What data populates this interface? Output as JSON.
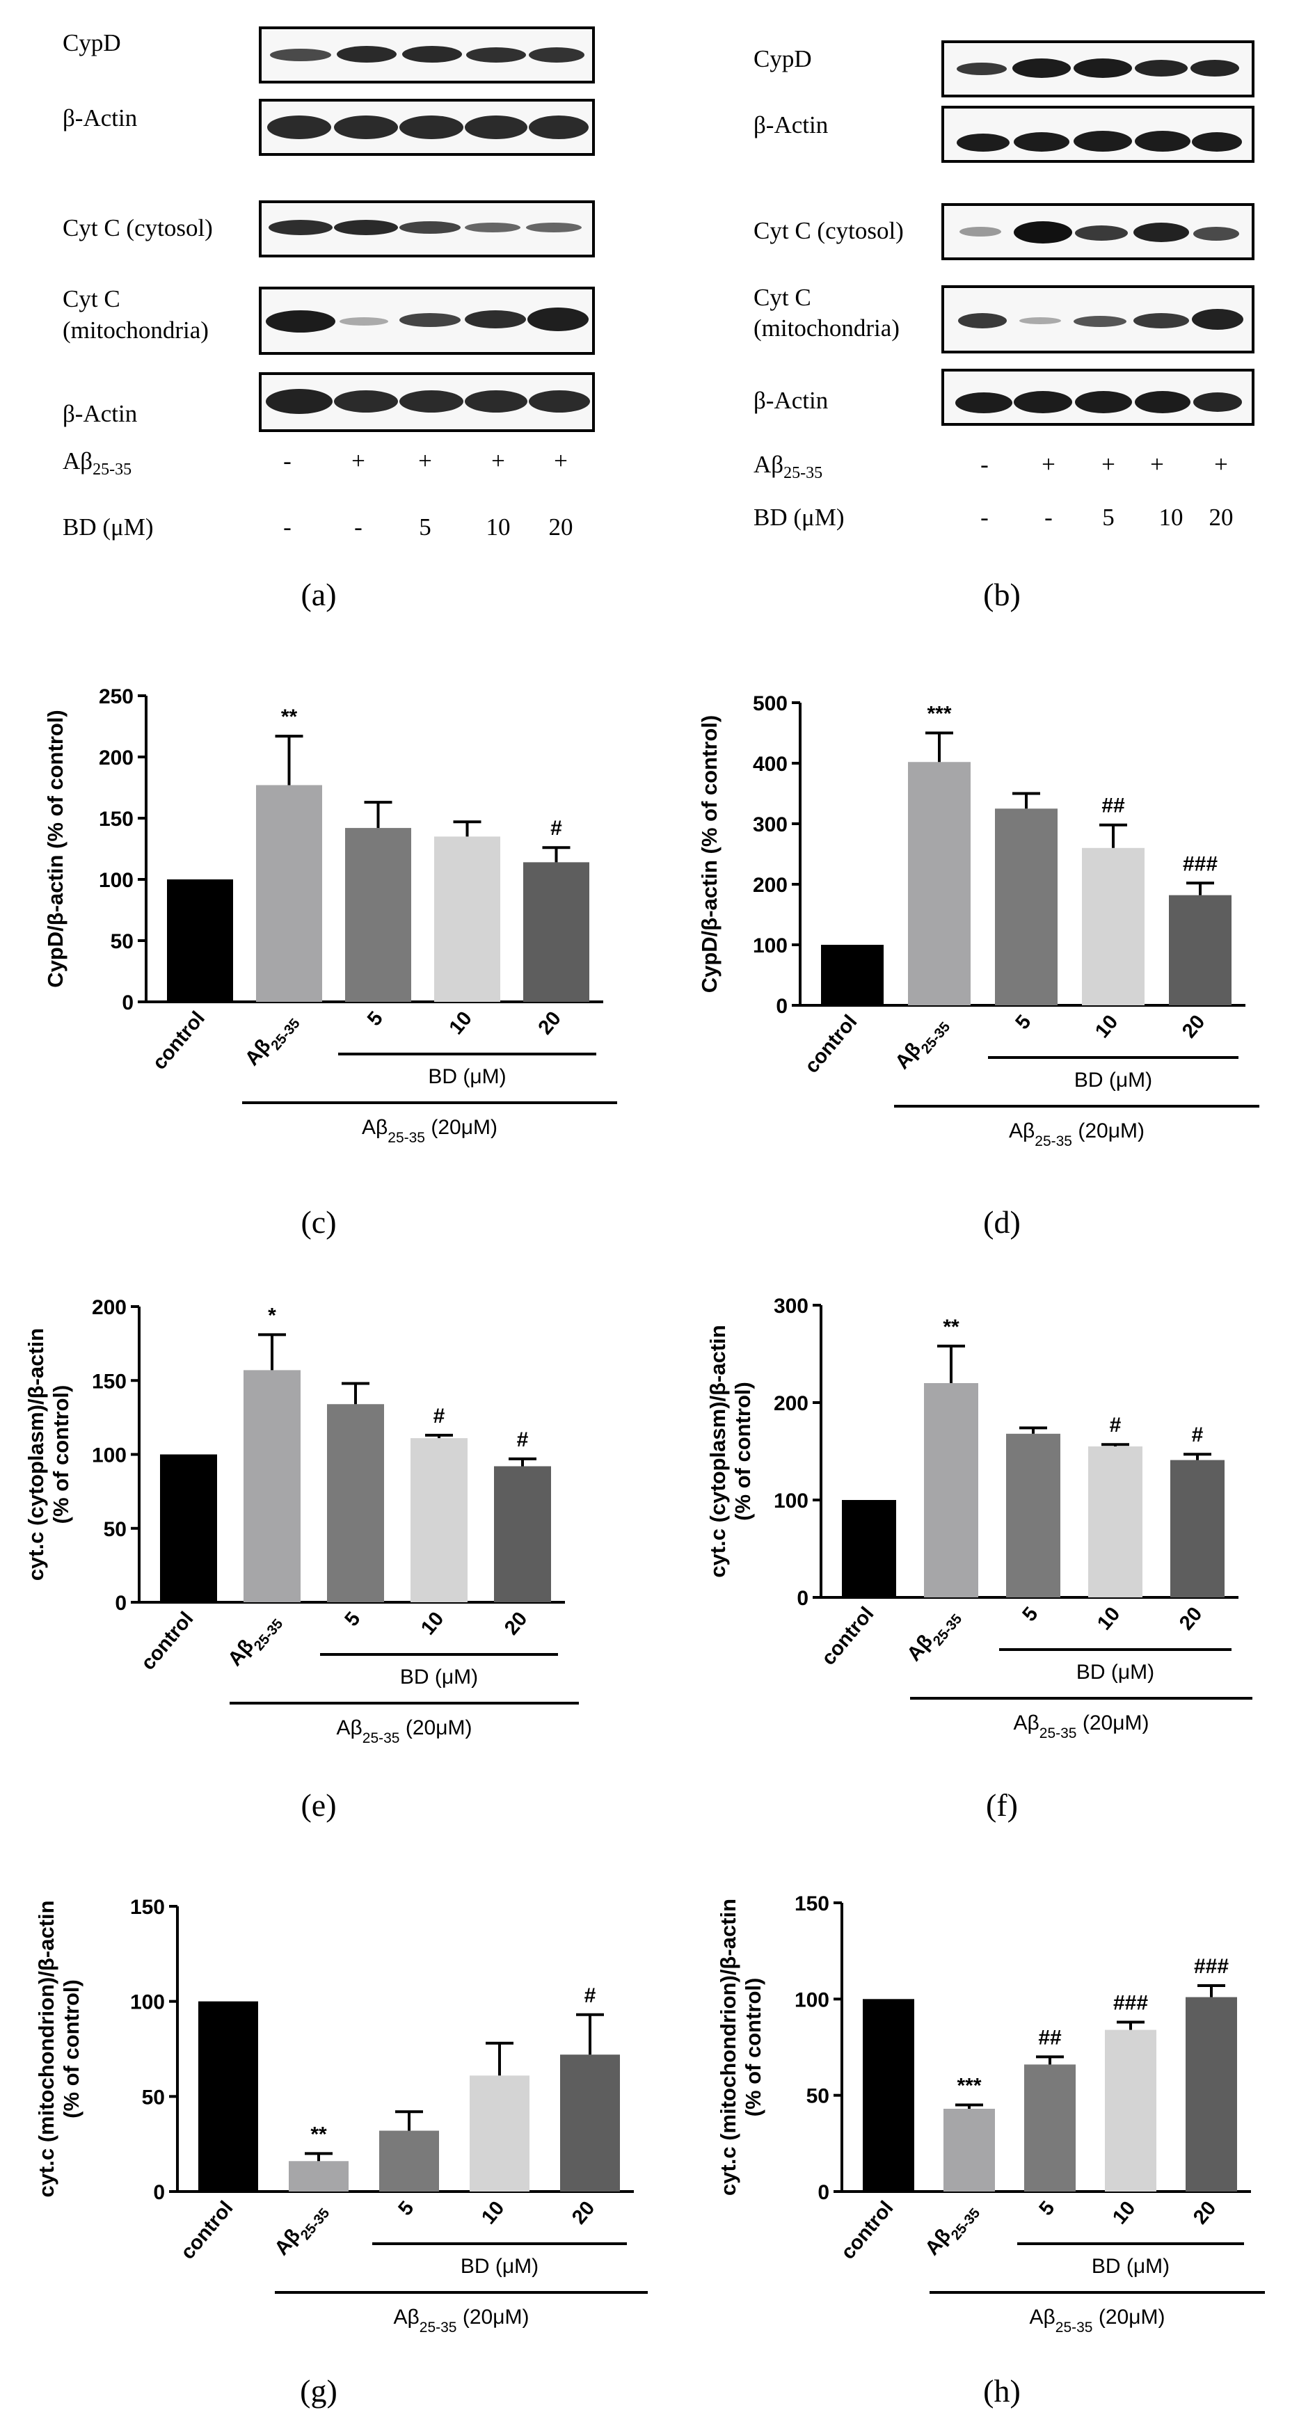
{
  "panel_labels": [
    "(a)",
    "(b)",
    "(c)",
    "(d)",
    "(e)",
    "(f)",
    "(g)",
    "(h)"
  ],
  "blots": {
    "a": {
      "rows": [
        "CypD",
        "β-Actin",
        "Cyt C (cytosol)",
        "Cyt C",
        "(mitochondria)",
        "β-Actin"
      ],
      "ab_label": "Aβ",
      "ab_sub": "25-35",
      "bd_label": "BD (μM)",
      "ab_values": [
        "-",
        "+",
        "+",
        "+",
        "+"
      ],
      "bd_values": [
        "-",
        "-",
        "5",
        "10",
        "20"
      ]
    },
    "b": {
      "rows": [
        "CypD",
        "β-Actin",
        "Cyt C (cytosol)",
        "Cyt C",
        "(mitochondria)",
        "β-Actin"
      ],
      "ab_label": "Aβ",
      "ab_sub": "25-35",
      "bd_label": "BD (μM)",
      "ab_values": [
        "-",
        "+",
        "+",
        "+",
        "+"
      ],
      "bd_values": [
        "-",
        "-",
        "5",
        "10",
        "20"
      ]
    }
  },
  "chart_data": [
    {
      "id": "c",
      "type": "bar",
      "ylabel": "CypD/β-actin (% of control)",
      "categories": [
        "control",
        "Aβ25-35",
        "5",
        "10",
        "20"
      ],
      "values": [
        100,
        177,
        142,
        135,
        114
      ],
      "errors": [
        0,
        40,
        21,
        12,
        12
      ],
      "significance": [
        "",
        "**",
        "",
        "",
        "#"
      ],
      "ylim": [
        0,
        250
      ],
      "yticks": [
        0,
        50,
        100,
        150,
        200,
        250
      ],
      "colors": [
        "#000000",
        "#a6a6a8",
        "#7a7a7a",
        "#d4d4d4",
        "#5e5e5e"
      ],
      "bd_label": "BD (μM)",
      "ab_label": "Aβ25-35 (20μM)"
    },
    {
      "id": "d",
      "type": "bar",
      "ylabel": "CypD/β-actin (% of control)",
      "categories": [
        "control",
        "Aβ25-35",
        "5",
        "10",
        "20"
      ],
      "values": [
        100,
        402,
        325,
        260,
        182
      ],
      "errors": [
        0,
        48,
        25,
        38,
        20
      ],
      "significance": [
        "",
        "***",
        "",
        "##",
        "###"
      ],
      "ylim": [
        0,
        500
      ],
      "yticks": [
        0,
        100,
        200,
        300,
        400,
        500
      ],
      "colors": [
        "#000000",
        "#a6a6a8",
        "#7a7a7a",
        "#d4d4d4",
        "#5e5e5e"
      ],
      "bd_label": "BD (μM)",
      "ab_label": "Aβ25-35 (20μM)"
    },
    {
      "id": "e",
      "type": "bar",
      "ylabel": "cyt.c (cytoplasm)/β-actin (% of control)",
      "categories": [
        "control",
        "Aβ25-35",
        "5",
        "10",
        "20"
      ],
      "values": [
        100,
        157,
        134,
        111,
        92
      ],
      "errors": [
        0,
        24,
        14,
        2,
        5
      ],
      "significance": [
        "",
        "*",
        "",
        "#",
        "#"
      ],
      "ylim": [
        0,
        200
      ],
      "yticks": [
        0,
        50,
        100,
        150,
        200
      ],
      "colors": [
        "#000000",
        "#a6a6a8",
        "#7a7a7a",
        "#d4d4d4",
        "#5e5e5e"
      ],
      "bd_label": "BD (μM)",
      "ab_label": "Aβ25-35 (20μM)"
    },
    {
      "id": "f",
      "type": "bar",
      "ylabel": "cyt.c (cytoplasm)/β-actin (% of control)",
      "categories": [
        "control",
        "Aβ25-35",
        "5",
        "10",
        "20"
      ],
      "values": [
        100,
        220,
        168,
        155,
        141
      ],
      "errors": [
        0,
        38,
        6,
        2,
        6
      ],
      "significance": [
        "",
        "**",
        "",
        "#",
        "#"
      ],
      "ylim": [
        0,
        300
      ],
      "yticks": [
        0,
        100,
        200,
        300
      ],
      "colors": [
        "#000000",
        "#a6a6a8",
        "#7a7a7a",
        "#d4d4d4",
        "#5e5e5e"
      ],
      "bd_label": "BD (μM)",
      "ab_label": "Aβ25-35 (20μM)"
    },
    {
      "id": "g",
      "type": "bar",
      "ylabel": "cyt.c (mitochondrion)/β-actin (% of control)",
      "categories": [
        "control",
        "Aβ25-35",
        "5",
        "10",
        "20"
      ],
      "values": [
        100,
        16,
        32,
        61,
        72
      ],
      "errors": [
        0,
        4,
        10,
        17,
        21
      ],
      "significance": [
        "",
        "**",
        "",
        "",
        "#"
      ],
      "ylim": [
        0,
        150
      ],
      "yticks": [
        0,
        50,
        100,
        150
      ],
      "colors": [
        "#000000",
        "#a6a6a8",
        "#7a7a7a",
        "#d4d4d4",
        "#5e5e5e"
      ],
      "bd_label": "BD (μM)",
      "ab_label": "Aβ25-35 (20μM)"
    },
    {
      "id": "h",
      "type": "bar",
      "ylabel": "cyt.c (mitochondrion)/β-actin (% of control)",
      "categories": [
        "control",
        "Aβ25-35",
        "5",
        "10",
        "20"
      ],
      "values": [
        100,
        43,
        66,
        84,
        101
      ],
      "errors": [
        0,
        2,
        4,
        4,
        6
      ],
      "significance": [
        "",
        "***",
        "##",
        "###",
        "###"
      ],
      "ylim": [
        0,
        150
      ],
      "yticks": [
        0,
        50,
        100,
        150
      ],
      "colors": [
        "#000000",
        "#a6a6a8",
        "#7a7a7a",
        "#d4d4d4",
        "#5e5e5e"
      ],
      "bd_label": "BD (μM)",
      "ab_label": "Aβ25-35 (20μM)"
    }
  ]
}
